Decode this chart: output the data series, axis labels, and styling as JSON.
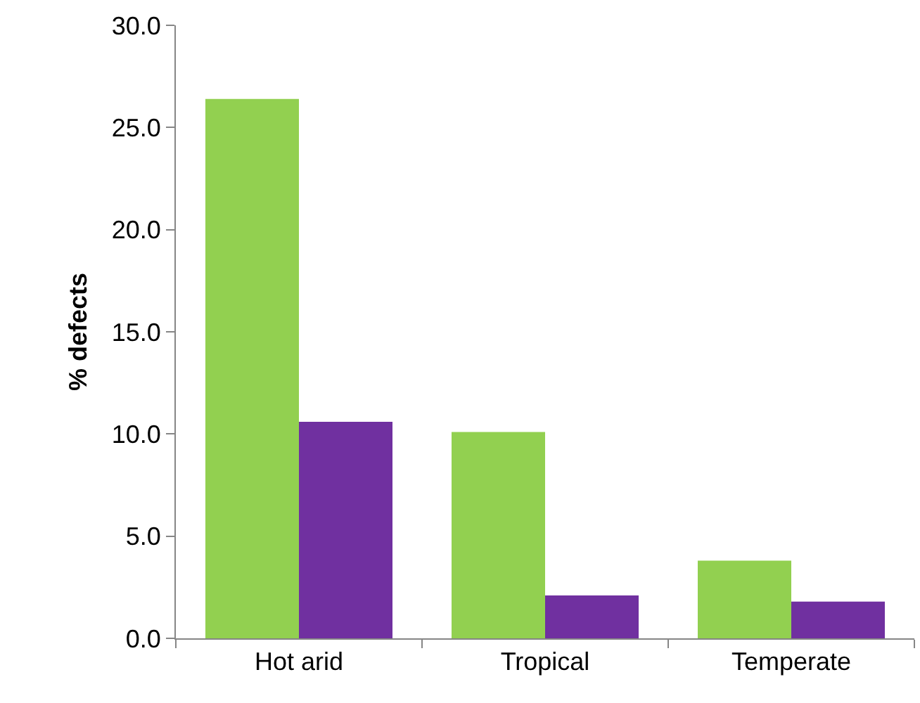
{
  "chart_data": {
    "type": "bar",
    "ylabel": "% defects",
    "categories": [
      "Hot arid",
      "Tropical",
      "Temperate"
    ],
    "series": [
      {
        "color": "#92d050",
        "values": [
          26.4,
          10.1,
          3.8
        ]
      },
      {
        "color": "#7030a0",
        "values": [
          10.6,
          2.1,
          1.8
        ]
      }
    ],
    "ylim": [
      0,
      30
    ],
    "yticks": [
      {
        "value": 0,
        "label": "0.0"
      },
      {
        "value": 5,
        "label": "5.0"
      },
      {
        "value": 10,
        "label": "10.0"
      },
      {
        "value": 15,
        "label": "15.0"
      },
      {
        "value": 20,
        "label": "20.0"
      },
      {
        "value": 25,
        "label": "25.0"
      },
      {
        "value": 30,
        "label": "30.0"
      }
    ],
    "grid": false,
    "legend": false
  }
}
